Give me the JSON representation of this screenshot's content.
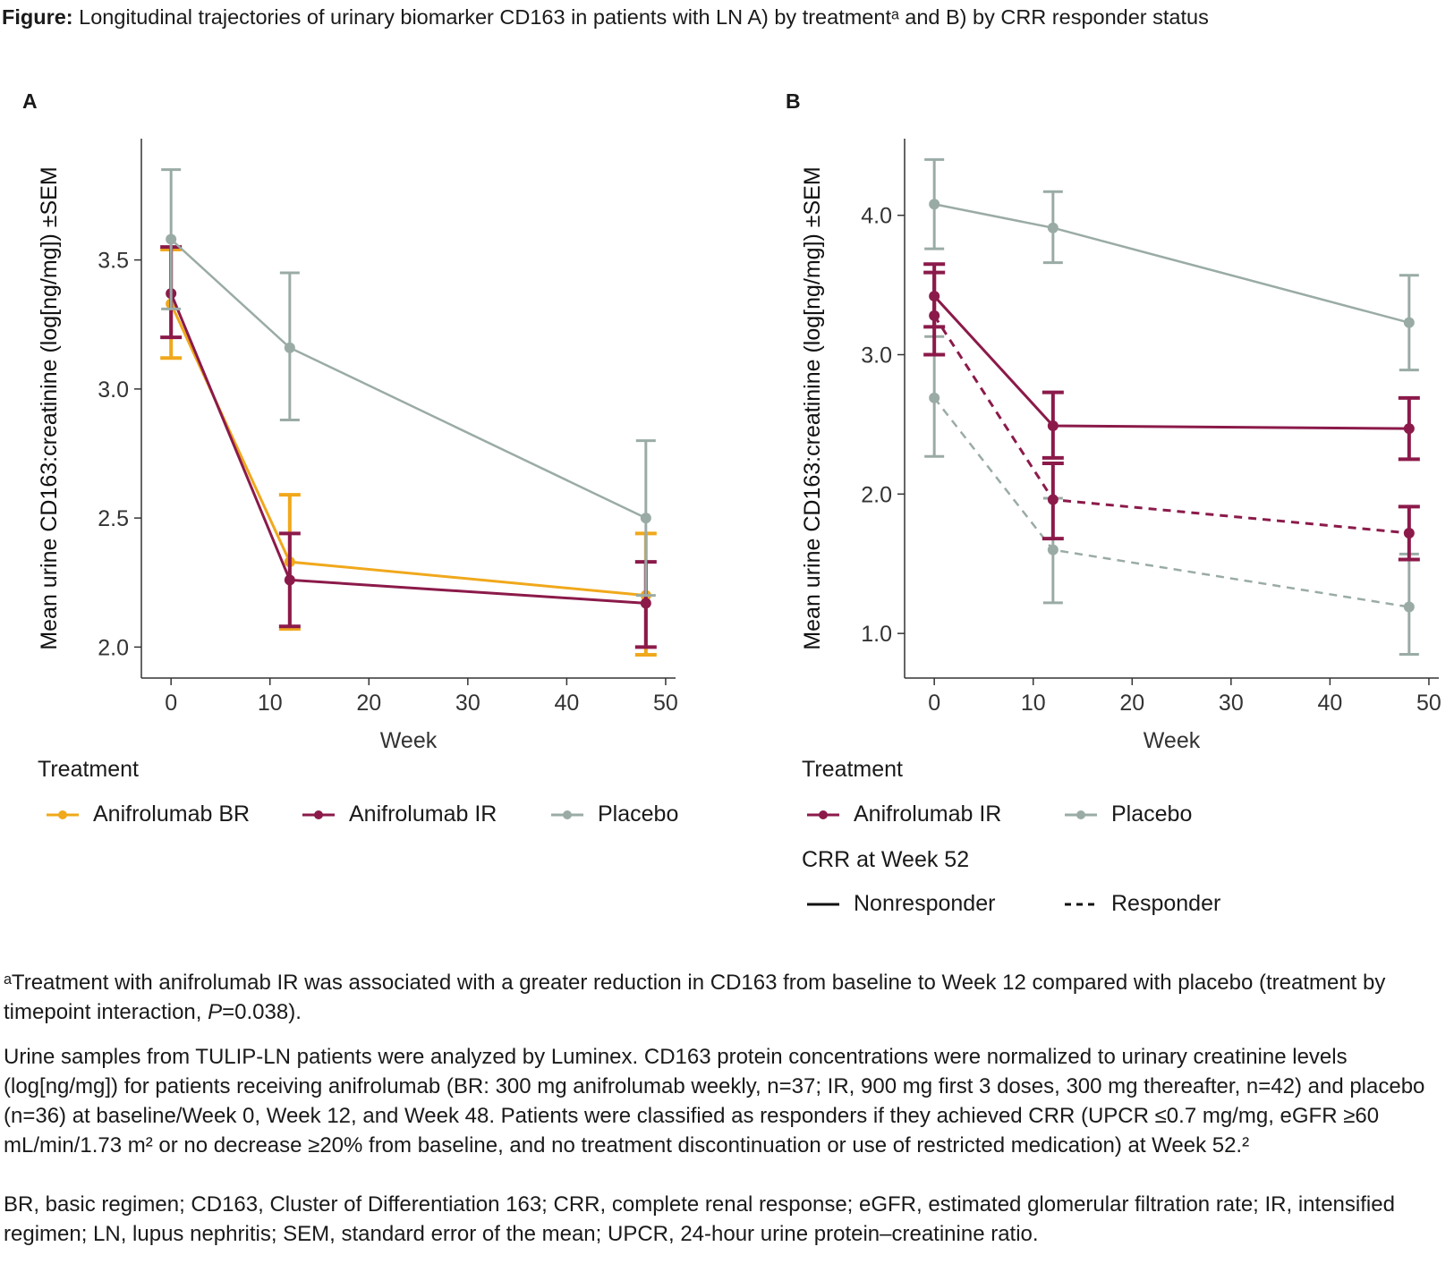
{
  "title": {
    "bold": "Figure:",
    "text": " Longitudinal trajectories of urinary biomarker CD163 in patients with LN A) by treatmentᵃ and B) by CRR responder status"
  },
  "colors": {
    "Anifrolumab BR": "#f0a81c",
    "Anifrolumab IR": "#8b1a4a",
    "Placebo": "#9aaba6"
  },
  "chart_data": [
    {
      "panel": "A",
      "type": "line",
      "xlabel": "Week",
      "ylabel": "Mean urine CD163:creatinine (log[ng/mg]) ±SEM",
      "xlim": [
        -3,
        51
      ],
      "ylim": [
        1.88,
        3.97
      ],
      "xticks": [
        0,
        10,
        20,
        30,
        40,
        50
      ],
      "yticks": [
        2.0,
        2.5,
        3.0,
        3.5
      ],
      "grid": false,
      "legend_title": "Treatment",
      "legend_position": "bottom",
      "series": [
        {
          "name": "Anifrolumab BR",
          "style": "solid",
          "x": [
            0,
            12,
            48
          ],
          "y": [
            3.33,
            2.33,
            2.2
          ],
          "lower": [
            3.12,
            2.07,
            1.97
          ],
          "upper": [
            3.54,
            2.59,
            2.44
          ]
        },
        {
          "name": "Anifrolumab IR",
          "style": "solid",
          "x": [
            0,
            12,
            48
          ],
          "y": [
            3.37,
            2.26,
            2.17
          ],
          "lower": [
            3.2,
            2.08,
            2.0
          ],
          "upper": [
            3.55,
            2.44,
            2.33
          ]
        },
        {
          "name": "Placebo",
          "style": "solid",
          "x": [
            0,
            12,
            48
          ],
          "y": [
            3.58,
            3.16,
            2.5
          ],
          "lower": [
            3.31,
            2.88,
            2.2
          ],
          "upper": [
            3.85,
            3.45,
            2.8
          ]
        }
      ]
    },
    {
      "panel": "B",
      "type": "line",
      "xlabel": "Week",
      "ylabel": "Mean urine CD163:creatinine (log[ng/mg]) ±SEM",
      "xlim": [
        -3,
        51
      ],
      "ylim": [
        0.68,
        4.55
      ],
      "xticks": [
        0,
        10,
        20,
        30,
        40,
        50
      ],
      "yticks": [
        1.0,
        2.0,
        3.0,
        4.0
      ],
      "grid": false,
      "legend_title": "Treatment",
      "legend2_title": "CRR at Week 52",
      "legend_position": "bottom",
      "series": [
        {
          "treatment": "Placebo",
          "crr": "Nonresponder",
          "style": "solid",
          "x": [
            0,
            12,
            48
          ],
          "y": [
            4.08,
            3.91,
            3.23
          ],
          "lower": [
            3.76,
            3.66,
            2.89
          ],
          "upper": [
            4.4,
            4.17,
            3.57
          ]
        },
        {
          "treatment": "Placebo",
          "crr": "Responder",
          "style": "dashed",
          "x": [
            0,
            12,
            48
          ],
          "y": [
            2.69,
            1.6,
            1.19
          ],
          "lower": [
            2.27,
            1.22,
            0.85
          ],
          "upper": [
            3.13,
            1.97,
            1.57
          ]
        },
        {
          "treatment": "Anifrolumab IR",
          "crr": "Nonresponder",
          "style": "solid",
          "x": [
            0,
            12,
            48
          ],
          "y": [
            3.42,
            2.49,
            2.47
          ],
          "lower": [
            3.2,
            2.26,
            2.25
          ],
          "upper": [
            3.65,
            2.73,
            2.69
          ]
        },
        {
          "treatment": "Anifrolumab IR",
          "crr": "Responder",
          "style": "dashed",
          "x": [
            0,
            12,
            48
          ],
          "y": [
            3.28,
            1.96,
            1.72
          ],
          "lower": [
            3.0,
            1.68,
            1.53
          ],
          "upper": [
            3.59,
            2.22,
            1.91
          ]
        }
      ]
    }
  ],
  "legendA": {
    "title": "Treatment",
    "items": [
      "Anifrolumab BR",
      "Anifrolumab IR",
      "Placebo"
    ]
  },
  "legendB": {
    "title": "Treatment",
    "items": [
      "Anifrolumab IR",
      "Placebo"
    ],
    "title2": "CRR at Week 52",
    "styles": [
      "Nonresponder",
      "Responder"
    ]
  },
  "footnotes": {
    "a_pre": "ᵃTreatment with anifrolumab IR was associated with a greater reduction in CD163 from baseline to Week 12 compared with placebo (treatment by timepoint interaction, ",
    "a_p": "P",
    "a_post": "=0.038).",
    "methods": "Urine samples from TULIP-LN patients were analyzed by Luminex. CD163 protein concentrations were normalized to urinary creatinine levels (log[ng/mg]) for patients receiving anifrolumab (BR: 300 mg anifrolumab weekly, n=37; IR, 900 mg first 3 doses, 300 mg thereafter, n=42) and placebo (n=36) at baseline/Week 0, Week 12, and Week 48. Patients were classified as responders if they achieved CRR (UPCR ≤0.7 mg/mg, eGFR ≥60 mL/min/1.73 m² or no decrease ≥20% from baseline, and no treatment discontinuation or use of restricted medication) at Week 52.²",
    "abbrev": "BR, basic regimen; CD163, Cluster of Differentiation 163; CRR, complete renal response; eGFR, estimated glomerular filtration rate; IR, intensified regimen; LN, lupus nephritis; SEM, standard error of the mean; UPCR, 24-hour urine protein–creatinine ratio."
  }
}
